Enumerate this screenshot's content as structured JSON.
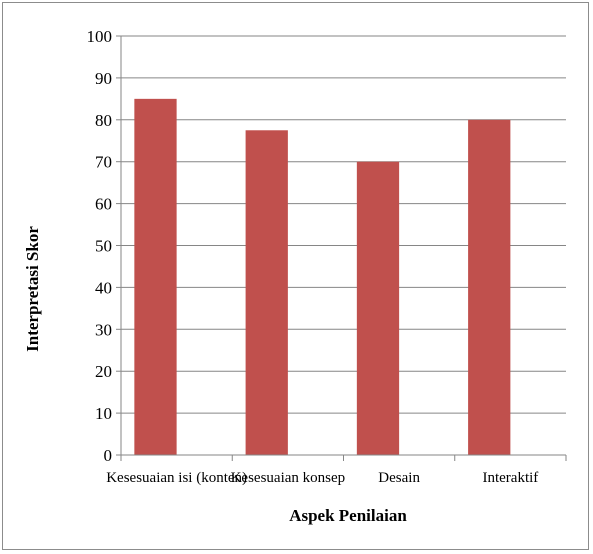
{
  "chart_data": {
    "type": "bar",
    "title": "",
    "xlabel": "Aspek Penilaian",
    "ylabel": "Interpretasi Skor",
    "categories": [
      "Kesesuaian isi (konten)",
      "Kesesuaian konsep",
      "Desain",
      "Interaktif"
    ],
    "values": [
      85,
      77.5,
      70,
      80
    ],
    "ylim": [
      0,
      100
    ],
    "yticks": [
      "0",
      "10",
      "20",
      "30",
      "40",
      "50",
      "60",
      "70",
      "80",
      "90",
      "100"
    ],
    "grid": true,
    "legend": "none",
    "bar_color": "#c0504d"
  }
}
